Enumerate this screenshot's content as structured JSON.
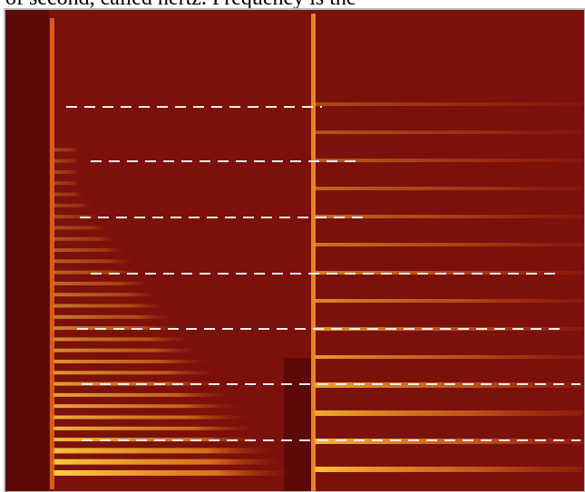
{
  "page": {
    "caption_fragment": "of second, called hertz. Frequency is the"
  }
}
